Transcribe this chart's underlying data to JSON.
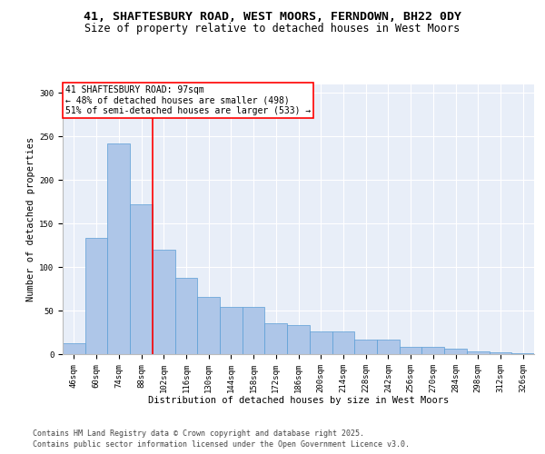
{
  "title_line1": "41, SHAFTESBURY ROAD, WEST MOORS, FERNDOWN, BH22 0DY",
  "title_line2": "Size of property relative to detached houses in West Moors",
  "xlabel": "Distribution of detached houses by size in West Moors",
  "ylabel": "Number of detached properties",
  "categories": [
    "46sqm",
    "60sqm",
    "74sqm",
    "88sqm",
    "102sqm",
    "116sqm",
    "130sqm",
    "144sqm",
    "158sqm",
    "172sqm",
    "186sqm",
    "200sqm",
    "214sqm",
    "228sqm",
    "242sqm",
    "256sqm",
    "270sqm",
    "284sqm",
    "298sqm",
    "312sqm",
    "326sqm"
  ],
  "values": [
    12,
    133,
    242,
    172,
    120,
    88,
    66,
    54,
    54,
    35,
    33,
    26,
    26,
    17,
    17,
    8,
    8,
    6,
    3,
    2,
    1
  ],
  "bar_color": "#aec6e8",
  "bar_edge_color": "#5a9ed6",
  "annotation_text_line1": "41 SHAFTESBURY ROAD: 97sqm",
  "annotation_text_line2": "← 48% of detached houses are smaller (498)",
  "annotation_text_line3": "51% of semi-detached houses are larger (533) →",
  "annotation_box_color": "white",
  "annotation_border_color": "red",
  "vline_color": "red",
  "vline_x_index": 3.5,
  "ylim": [
    0,
    310
  ],
  "yticks": [
    0,
    50,
    100,
    150,
    200,
    250,
    300
  ],
  "background_color": "#e8eef8",
  "footer_line1": "Contains HM Land Registry data © Crown copyright and database right 2025.",
  "footer_line2": "Contains public sector information licensed under the Open Government Licence v3.0.",
  "title_fontsize": 9.5,
  "subtitle_fontsize": 8.5,
  "axis_label_fontsize": 7.5,
  "tick_fontsize": 6.5,
  "annotation_fontsize": 7,
  "footer_fontsize": 6
}
